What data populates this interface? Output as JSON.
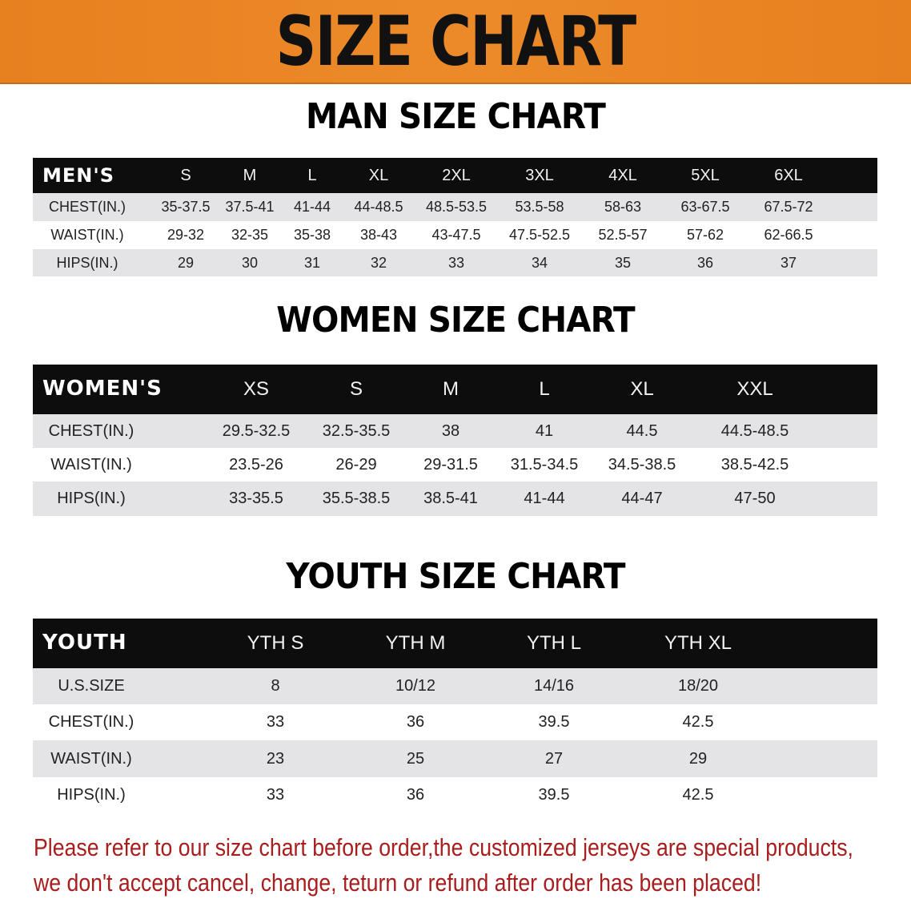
{
  "banner": {
    "title": "SIZE CHART",
    "color": "#e8801f"
  },
  "men": {
    "title": "MAN SIZE CHART",
    "header_label": "MEN'S",
    "sizes": [
      "S",
      "M",
      "L",
      "XL",
      "2XL",
      "3XL",
      "4XL",
      "5XL",
      "6XL"
    ],
    "rows": [
      {
        "label": "CHEST(IN.)",
        "values": [
          "35-37.5",
          "37.5-41",
          "41-44",
          "44-48.5",
          "48.5-53.5",
          "53.5-58",
          "58-63",
          "63-67.5",
          "67.5-72"
        ]
      },
      {
        "label": "WAIST(IN.)",
        "values": [
          "29-32",
          "32-35",
          "35-38",
          "38-43",
          "43-47.5",
          "47.5-52.5",
          "52.5-57",
          "57-62",
          "62-66.5"
        ]
      },
      {
        "label": "HIPS(IN.)",
        "values": [
          "29",
          "30",
          "31",
          "32",
          "33",
          "34",
          "35",
          "36",
          "37"
        ]
      }
    ]
  },
  "women": {
    "title": "WOMEN SIZE CHART",
    "header_label": "WOMEN'S",
    "sizes": [
      "XS",
      "S",
      "M",
      "L",
      "XL",
      "XXL"
    ],
    "rows": [
      {
        "label": "CHEST(IN.)",
        "values": [
          "29.5-32.5",
          "32.5-35.5",
          "38",
          "41",
          "44.5",
          "44.5-48.5"
        ]
      },
      {
        "label": "WAIST(IN.)",
        "values": [
          "23.5-26",
          "26-29",
          "29-31.5",
          "31.5-34.5",
          "34.5-38.5",
          "38.5-42.5"
        ]
      },
      {
        "label": "HIPS(IN.)",
        "values": [
          "33-35.5",
          "35.5-38.5",
          "38.5-41",
          "41-44",
          "44-47",
          "47-50"
        ]
      }
    ]
  },
  "youth": {
    "title": "YOUTH SIZE CHART",
    "header_label": "YOUTH",
    "sizes": [
      "YTH S",
      "YTH M",
      "YTH L",
      "YTH XL"
    ],
    "rows": [
      {
        "label": "U.S.SIZE",
        "values": [
          "8",
          "10/12",
          "14/16",
          "18/20"
        ]
      },
      {
        "label": "CHEST(IN.)",
        "values": [
          "33",
          "36",
          "39.5",
          "42.5"
        ]
      },
      {
        "label": "WAIST(IN.)",
        "values": [
          "23",
          "25",
          "27",
          "29"
        ]
      },
      {
        "label": "HIPS(IN.)",
        "values": [
          "33",
          "36",
          "39.5",
          "42.5"
        ]
      }
    ]
  },
  "footer": {
    "line1": "Please refer to our size chart before order,the customized jerseys are special products,",
    "line2": "we don't accept cancel, change, teturn or refund after order has been placed!",
    "color": "#a81e1e"
  }
}
